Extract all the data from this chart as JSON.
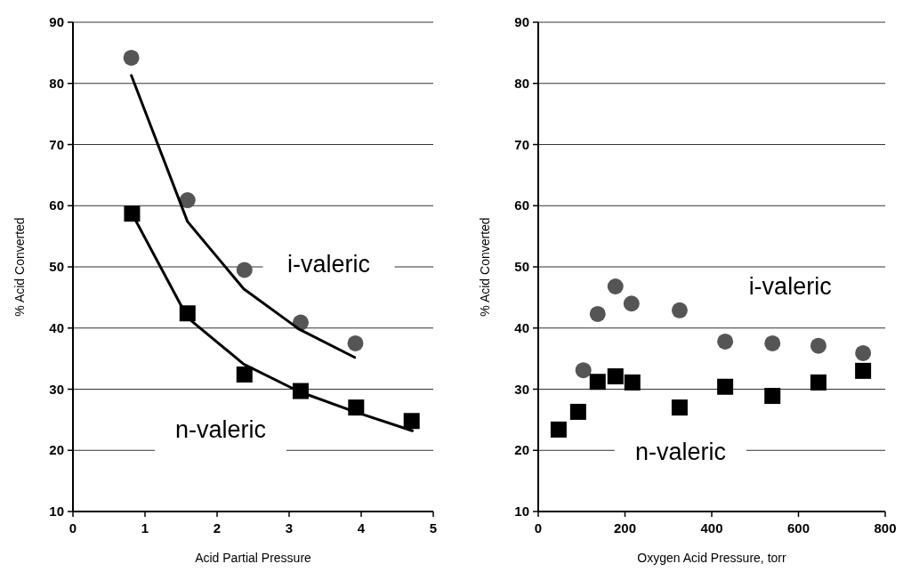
{
  "chart_data": [
    {
      "type": "scatter",
      "xlabel": "Acid Partial Pressure",
      "ylabel": "% Acid Converted",
      "xlim": [
        0,
        5
      ],
      "xticks": [
        0,
        1,
        2,
        3,
        4,
        5
      ],
      "ylim": [
        10,
        90
      ],
      "yticks": [
        10,
        20,
        30,
        40,
        50,
        60,
        70,
        80,
        90
      ],
      "grid": "y",
      "series": [
        {
          "name": "i-valeric",
          "color": "#555555",
          "marker": "circle",
          "x": [
            0.81,
            1.59,
            2.38,
            3.16,
            3.92
          ],
          "values": [
            84.2,
            60.9,
            49.5,
            40.9,
            37.5
          ]
        },
        {
          "name": "n-valeric",
          "color": "#000000",
          "marker": "square",
          "x": [
            0.82,
            1.59,
            2.38,
            3.16,
            3.93,
            4.7
          ],
          "values": [
            58.7,
            42.4,
            32.4,
            29.7,
            27.0,
            24.8
          ]
        },
        {
          "type": "line",
          "color": "#000000",
          "marker": "none",
          "line_style": "solid",
          "x": [
            0.81,
            1.59,
            2.37,
            3.14,
            3.91
          ],
          "values": [
            81.3,
            57.4,
            46.4,
            39.8,
            35.2
          ]
        },
        {
          "type": "line",
          "color": "#000000",
          "marker": "none",
          "line_style": "solid",
          "x": [
            0.82,
            1.59,
            2.37,
            3.14,
            3.91,
            4.71
          ],
          "values": [
            58.7,
            41.7,
            34.1,
            29.6,
            26.3,
            23.2
          ]
        }
      ]
    },
    {
      "type": "scatter",
      "xlabel": "Oxygen Acid Pressure, torr",
      "ylabel": "% Acid Converted",
      "xlim": [
        0,
        800
      ],
      "xticks": [
        0,
        200,
        400,
        600,
        800
      ],
      "ylim": [
        10,
        90
      ],
      "yticks": [
        10,
        20,
        30,
        40,
        50,
        60,
        70,
        80,
        90
      ],
      "grid": "y",
      "series": [
        {
          "name": "i-valeric",
          "color": "#555555",
          "marker": "circle",
          "x": [
            104,
            137,
            178,
            215,
            326,
            431,
            540,
            646,
            749
          ],
          "values": [
            33.1,
            42.3,
            46.8,
            44.0,
            42.9,
            37.8,
            37.5,
            37.1,
            35.9
          ]
        },
        {
          "name": "n-valeric",
          "color": "#000000",
          "marker": "square",
          "x": [
            47,
            92,
            137,
            178,
            217,
            326,
            431,
            540,
            646,
            749
          ],
          "values": [
            23.4,
            26.3,
            31.2,
            32.1,
            31.1,
            27.0,
            30.4,
            28.9,
            31.1,
            33.0
          ]
        }
      ]
    }
  ]
}
